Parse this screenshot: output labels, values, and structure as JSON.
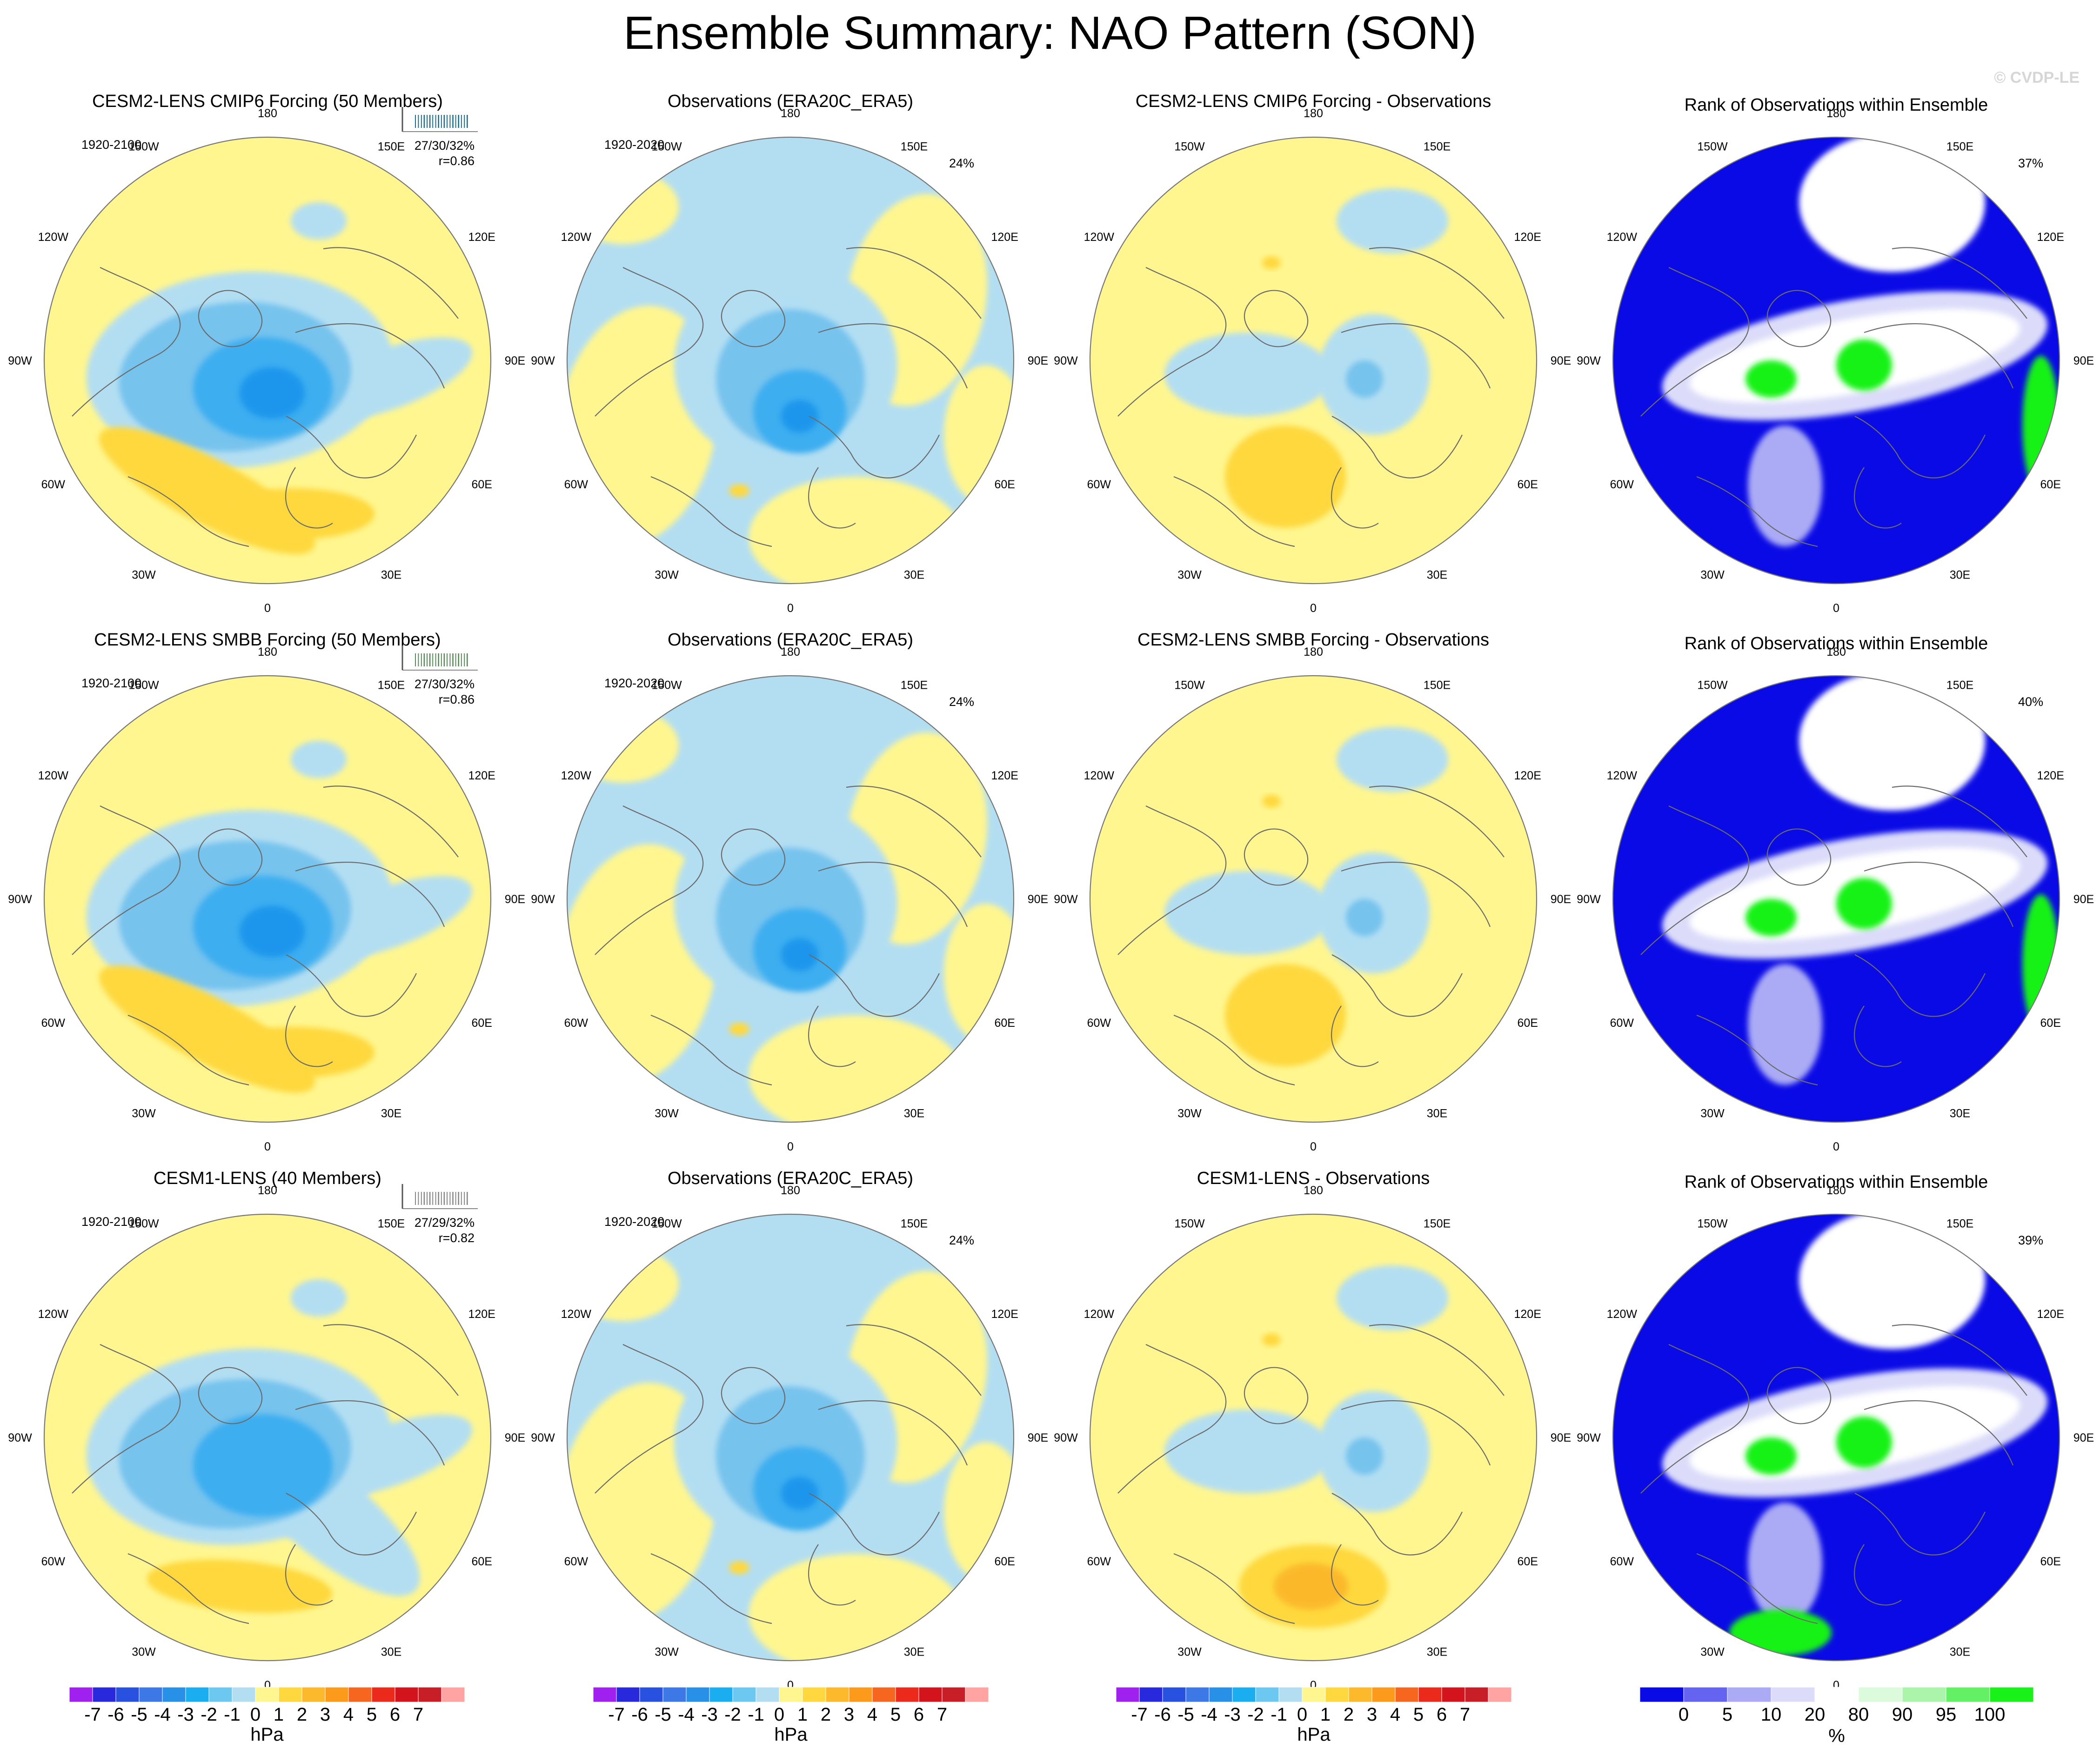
{
  "figure": {
    "title": "Ensemble Summary: NAO Pattern (SON)",
    "watermark": "© CVDP-LE"
  },
  "colors": {
    "ocean_yellow": "#fff68f",
    "sea_blue": "#b3def2",
    "blue2": "#76c3ee",
    "blue3": "#3caef0",
    "blue4": "#1a96ec",
    "gold1": "#fed83e",
    "orange2": "#fbb92b",
    "dark_blue": "#0a0ae6",
    "green": "#19f219",
    "title_cmip6": "#1f6f8b",
    "title_smbb": "#5a8a5a",
    "title_cesm1": "#888888"
  },
  "longitude_labels": [
    "180",
    "150E",
    "120E",
    "90E",
    "60E",
    "30E",
    "0",
    "30W",
    "60W",
    "90W",
    "120W",
    "150W"
  ],
  "rows": [
    {
      "model_title": "CESM2-LENS CMIP6 Forcing (50 Members)",
      "model_years": "1920-2100",
      "pc_stats": "27/30/32%",
      "pattern_corr": "r=0.86",
      "obs_title": "Observations (ERA20C_ERA5)",
      "obs_years": "1920-2020",
      "obs_pct": "24%",
      "diff_title": "CESM2-LENS CMIP6 Forcing - Observations",
      "rank_title": "Rank of Observations within Ensemble",
      "rank_pct": "37%"
    },
    {
      "model_title": "CESM2-LENS SMBB Forcing (50 Members)",
      "model_years": "1920-2100",
      "pc_stats": "27/30/32%",
      "pattern_corr": "r=0.86",
      "obs_title": "Observations (ERA20C_ERA5)",
      "obs_years": "1920-2020",
      "obs_pct": "24%",
      "diff_title": "CESM2-LENS SMBB Forcing - Observations",
      "rank_title": "Rank of Observations within Ensemble",
      "rank_pct": "40%"
    },
    {
      "model_title": "CESM1-LENS (40 Members)",
      "model_years": "1920-2100",
      "pc_stats": "27/29/32%",
      "pattern_corr": "r=0.82",
      "obs_title": "Observations (ERA20C_ERA5)",
      "obs_years": "1920-2020",
      "obs_pct": "24%",
      "diff_title": "CESM1-LENS - Observations",
      "rank_title": "Rank of Observations within Ensemble",
      "rank_pct": "39%"
    }
  ],
  "colorbars": {
    "hpa": {
      "unit": "hPa",
      "labels": [
        "-7",
        "-6",
        "-5",
        "-4",
        "-3",
        "-2",
        "-1",
        "0",
        "1",
        "2",
        "3",
        "4",
        "5",
        "6",
        "7"
      ],
      "colors": [
        "#a020f0",
        "#2828dc",
        "#2851e0",
        "#3c78e6",
        "#2890e6",
        "#1aaef0",
        "#6cc8f0",
        "#b3def2",
        "#fff68f",
        "#fed83e",
        "#fbb92b",
        "#fc9a1c",
        "#f7661f",
        "#ec2a1c",
        "#d4141c",
        "#c81e28",
        "#ffa3a3"
      ]
    },
    "rank": {
      "unit": "%",
      "labels": [
        "0",
        "5",
        "10",
        "20",
        "80",
        "90",
        "95",
        "100"
      ],
      "colors": [
        "#0a0ae6",
        "#6464f0",
        "#aaaaf5",
        "#dcdcfa",
        "#ffffff",
        "#dcfadc",
        "#aaf5aa",
        "#64f064",
        "#19f219"
      ]
    }
  },
  "chart_data": [
    {
      "type": "heatmap",
      "projection": "polar stereographic, North Pole",
      "panel": "model ensemble mean NAO pattern",
      "unit": "hPa",
      "levels": [
        -7,
        -6,
        -5,
        -4,
        -3,
        -2,
        -1,
        0,
        1,
        2,
        3,
        4,
        5,
        6,
        7
      ],
      "features": [
        {
          "name": "Arctic / Greenland low",
          "min_value": -4
        },
        {
          "name": "Azores / mid-Atlantic high",
          "max_value": 2
        }
      ]
    },
    {
      "type": "heatmap",
      "panel": "observations NAO pattern (ERA20C_ERA5)",
      "unit": "hPa",
      "features": [
        {
          "name": "Iceland low",
          "min_value": -5
        },
        {
          "name": "small Atlantic high",
          "max_value": 1
        }
      ]
    },
    {
      "type": "heatmap",
      "panel": "model minus observations",
      "unit": "hPa",
      "features": [
        {
          "name": "western Europe positive difference",
          "max_value": 2
        },
        {
          "name": "Barents Sea negative difference",
          "min_value": -2
        }
      ]
    },
    {
      "type": "heatmap",
      "panel": "rank of observations within ensemble",
      "unit": "%",
      "levels": [
        0,
        5,
        10,
        20,
        80,
        90,
        95,
        100
      ],
      "features": [
        {
          "name": "low-rank region (0-5%) percentage per row",
          "values": [
            "37%",
            "40%",
            "39%"
          ]
        }
      ]
    }
  ]
}
